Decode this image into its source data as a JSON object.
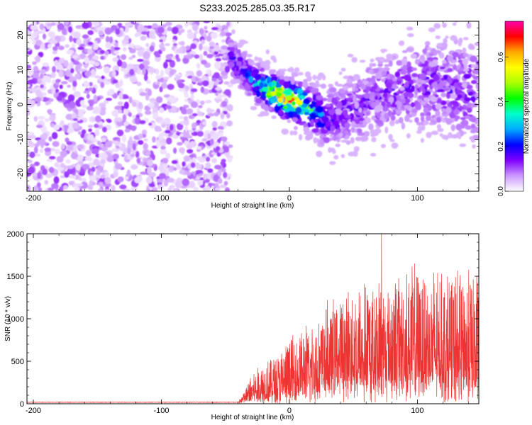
{
  "title": "S233.2025.285.03.35.R17",
  "chart_data": [
    {
      "type": "heatmap",
      "xlabel": "Height of straight line (km)",
      "ylabel": "Frequency (Hz)",
      "xlim": [
        -205,
        148
      ],
      "ylim": [
        -25,
        24
      ],
      "xticks": [
        -200,
        -100,
        0,
        100
      ],
      "yticks": [
        -20,
        -10,
        0,
        10,
        20
      ],
      "colorbar": {
        "label": "Normalized spectral amplitude",
        "range": [
          0,
          0.76
        ],
        "ticks": [
          0.0,
          0.2,
          0.4,
          0.6
        ],
        "tick_labels": [
          "0.0",
          "0.2",
          "0.4",
          "0.6"
        ],
        "colors": [
          "#ffffff",
          "#cc99ff",
          "#8000ff",
          "#0000ff",
          "#00aaff",
          "#00ffcc",
          "#00ff00",
          "#aaff00",
          "#ffff00",
          "#ffaa00",
          "#ff0000",
          "#ff00aa"
        ]
      },
      "regions": [
        {
          "name": "noise",
          "x_range": [
            -205,
            -46
          ],
          "y_range": [
            -25,
            24
          ],
          "amplitude_range": [
            0.02,
            0.12
          ]
        },
        {
          "name": "signal",
          "x_range": [
            -46,
            148
          ],
          "center_freq_at_x": [
            [
              -46,
              14
            ],
            [
              -30,
              7
            ],
            [
              -10,
              3
            ],
            [
              -2,
              1.5
            ],
            [
              10,
              0
            ],
            [
              30,
              -4
            ],
            [
              50,
              -1
            ],
            [
              80,
              4
            ],
            [
              110,
              6
            ],
            [
              148,
              4
            ]
          ],
          "amplitude_peak": 0.7,
          "peak_x": -3
        }
      ]
    },
    {
      "type": "line",
      "xlabel": "Height of straight line (km)",
      "ylabel": "SNR (10 * v/v)",
      "xlim": [
        -205,
        148
      ],
      "ylim": [
        0,
        2000
      ],
      "xticks": [
        -200,
        -100,
        0,
        100
      ],
      "yticks": [
        0,
        500,
        1000,
        1500,
        2000
      ],
      "color": "#ee3333",
      "series": [
        {
          "name": "SNR",
          "envelope": [
            [
              -205,
              20
            ],
            [
              -40,
              20
            ],
            [
              -35,
              150
            ],
            [
              -30,
              350
            ],
            [
              -20,
              500
            ],
            [
              -10,
              550
            ],
            [
              0,
              750
            ],
            [
              20,
              950
            ],
            [
              40,
              1250
            ],
            [
              60,
              1350
            ],
            [
              80,
              1450
            ],
            [
              100,
              1550
            ],
            [
              120,
              1450
            ],
            [
              148,
              1550
            ]
          ],
          "baseline": [
            [
              -205,
              15
            ],
            [
              -40,
              15
            ],
            [
              -30,
              60
            ],
            [
              0,
              100
            ],
            [
              20,
              250
            ],
            [
              40,
              320
            ],
            [
              60,
              350
            ],
            [
              100,
              350
            ],
            [
              148,
              300
            ]
          ],
          "max": [
            72,
            2000
          ]
        }
      ]
    }
  ]
}
